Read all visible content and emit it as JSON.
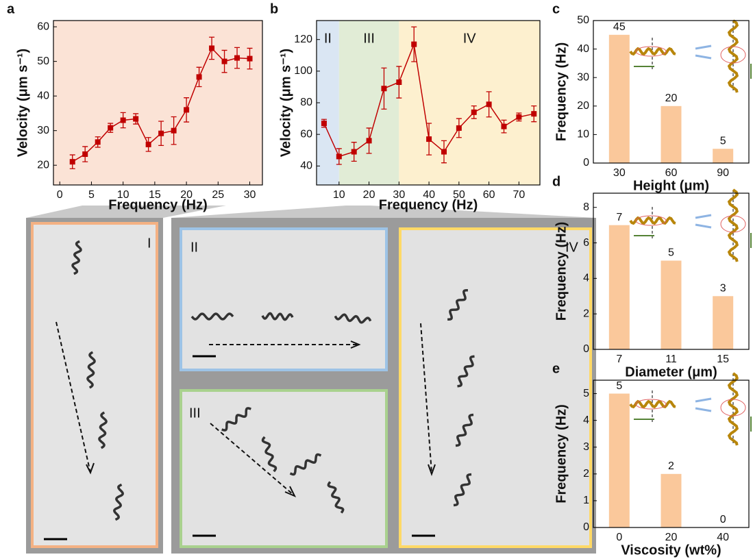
{
  "chart_data": [
    {
      "type": "line",
      "panel_label": "a",
      "background": "#fbe3d6",
      "xlabel": "Frequency (Hz)",
      "ylabel": "Velocity (μm s⁻¹)",
      "x": [
        2,
        4,
        6,
        8,
        10,
        12,
        14,
        16,
        18,
        20,
        22,
        24,
        26,
        28,
        30
      ],
      "series": [
        {
          "color": "#c00000",
          "values": [
            21,
            23.2,
            26.7,
            30.8,
            33,
            33.4,
            26,
            29.2,
            30,
            36,
            45.5,
            53.8,
            50,
            51,
            50.8
          ],
          "errors": [
            2,
            2.2,
            1.5,
            1.3,
            2.2,
            1.5,
            2,
            3.5,
            4,
            3.5,
            2.8,
            3.2,
            3.2,
            3,
            3
          ]
        }
      ],
      "xlim": [
        -1,
        32
      ],
      "xticks": [
        0,
        5,
        10,
        15,
        20,
        25,
        30
      ],
      "ylim": [
        14.3,
        61.8
      ],
      "yticks": [
        20,
        30,
        40,
        50,
        60
      ]
    },
    {
      "type": "line",
      "panel_label": "b",
      "xlabel": "Frequency (Hz)",
      "ylabel": "Velocity (μm s⁻¹)",
      "regions": [
        {
          "label": "II",
          "from": 2.5,
          "to": 10,
          "color": "#dae6f3"
        },
        {
          "label": "III",
          "from": 10,
          "to": 30,
          "color": "#e1ecd6"
        },
        {
          "label": "IV",
          "from": 30,
          "to": 77,
          "color": "#fdf0cf"
        }
      ],
      "x": [
        5,
        10,
        15,
        20,
        25,
        30,
        35,
        40,
        45,
        50,
        55,
        60,
        65,
        70,
        75
      ],
      "series": [
        {
          "color": "#c00000",
          "values": [
            67,
            46,
            49,
            56,
            89,
            93,
            117,
            57,
            49,
            64,
            74,
            79,
            65,
            71,
            73
          ],
          "errors": [
            2.5,
            5,
            6,
            8,
            13,
            10,
            11,
            10,
            7,
            6,
            4,
            8,
            4,
            2.5,
            5
          ]
        }
      ],
      "xlim": [
        2.5,
        77
      ],
      "xticks": [
        10,
        20,
        30,
        40,
        50,
        60,
        70
      ],
      "ylim": [
        28,
        132
      ],
      "yticks": [
        40,
        60,
        80,
        100,
        120
      ]
    },
    {
      "type": "bar",
      "panel_label": "c",
      "xlabel": "Height (μm)",
      "ylabel": "Frequency (Hz)",
      "color": "#fac89b",
      "categories": [
        "30",
        "60",
        "90"
      ],
      "values": [
        45,
        20,
        5
      ],
      "ylim": [
        0,
        50
      ],
      "yticks": [
        0,
        10,
        20,
        30,
        40,
        50
      ]
    },
    {
      "type": "bar",
      "panel_label": "d",
      "xlabel": "Diameter (μm)",
      "ylabel": "Frequency (Hz)",
      "color": "#fac89b",
      "categories": [
        "7",
        "11",
        "15"
      ],
      "values": [
        7,
        5,
        3
      ],
      "ylim": [
        0,
        8.8
      ],
      "yticks": [
        0,
        2,
        4,
        6,
        8
      ]
    },
    {
      "type": "bar",
      "panel_label": "e",
      "xlabel": "Viscosity (wt%)",
      "ylabel": "Frequency (Hz)",
      "color": "#fac89b",
      "categories": [
        "0",
        "20",
        "40"
      ],
      "values": [
        5,
        2,
        0
      ],
      "ylim": [
        0,
        5.5
      ],
      "yticks": [
        0,
        1,
        2,
        3,
        4,
        5
      ]
    }
  ],
  "micrographs": [
    "I",
    "II",
    "III",
    "IV"
  ]
}
